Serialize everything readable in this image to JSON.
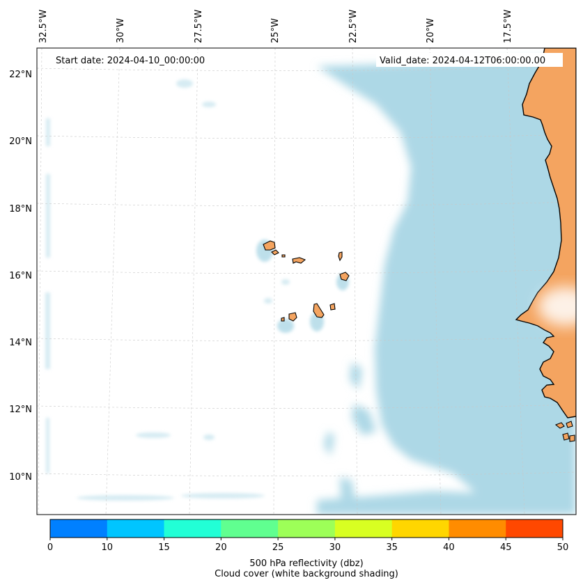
{
  "map": {
    "start_label": "Start date: 2024-04-10_00:00:00",
    "valid_label": "Valid_date: 2024-04-12T06:00:00.00",
    "lon_labels": [
      "32.5°W",
      "30°W",
      "27.5°W",
      "25°W",
      "22.5°W",
      "20°W",
      "17.5°W"
    ],
    "lat_labels": [
      "22°N",
      "20°N",
      "18°N",
      "16°N",
      "14°N",
      "12°N",
      "10°N"
    ],
    "colors": {
      "land": "#f4a460",
      "cloud": "#add8e6",
      "coast": "#000000",
      "grid": "#c8c8c8"
    }
  },
  "colorbar": {
    "ticks": [
      "0",
      "10",
      "15",
      "20",
      "25",
      "30",
      "35",
      "40",
      "45",
      "50"
    ],
    "colors": [
      "#0080ff",
      "#00c5ff",
      "#22ffd6",
      "#60ff90",
      "#9dff58",
      "#d8ff22",
      "#ffd600",
      "#ff8c00",
      "#ff4800"
    ],
    "label_line1": "500 hPa reflectivity (dbz)",
    "label_line2": "Cloud cover (white background shading)"
  }
}
